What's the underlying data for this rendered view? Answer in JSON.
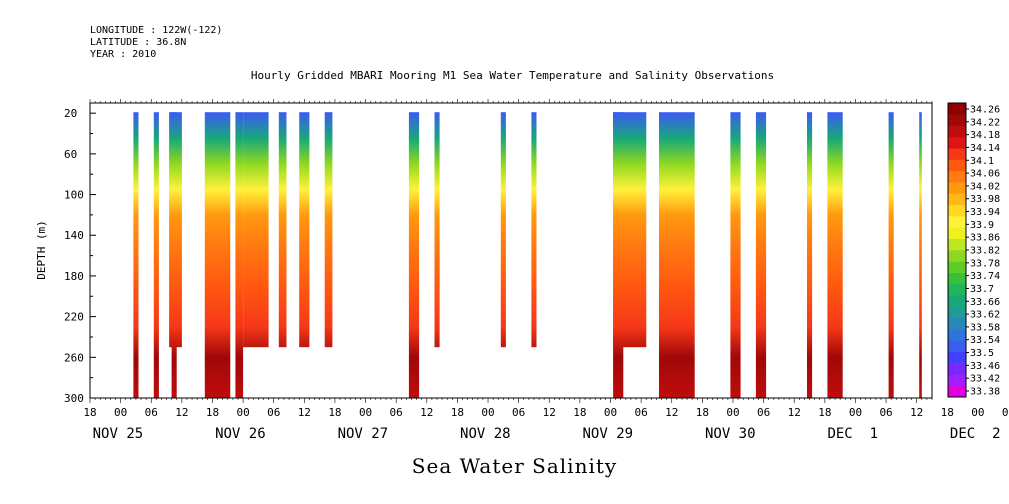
{
  "header": {
    "longitude": "LONGITUDE : 122W(-122)",
    "latitude": "LATITUDE : 36.8N",
    "year": "YEAR : 2010"
  },
  "chart_data": {
    "type": "heatmap",
    "title": "Hourly Gridded MBARI Mooring M1 Sea Water Temperature and Salinity Observations",
    "xlabel": "Sea Water Salinity",
    "ylabel": "DEPTH (m)",
    "y_reversed": true,
    "ylim": [
      300,
      10
    ],
    "y_ticks": [
      20,
      60,
      100,
      140,
      180,
      220,
      260,
      300
    ],
    "x_hour_ticks": [
      "18",
      "00",
      "06",
      "12",
      "18",
      "00",
      "06",
      "12",
      "18",
      "00",
      "06",
      "12",
      "18",
      "00",
      "06",
      "12",
      "18",
      "00",
      "06",
      "12",
      "18",
      "00",
      "06",
      "12",
      "18",
      "00",
      "06",
      "12",
      "18",
      "00",
      "06",
      "12"
    ],
    "x_day_labels": [
      "NOV 25",
      "NOV 26",
      "NOV 27",
      "NOV 28",
      "NOV 29",
      "NOV 30",
      "DEC  1",
      "DEC  2"
    ],
    "colorbar_min": 33.38,
    "colorbar_max": 34.26,
    "colorbar_labels": [
      "34.26",
      "34.22",
      "34.18",
      "34.14",
      "34.1",
      "34.06",
      "34.02",
      "33.98",
      "33.94",
      "33.9",
      "33.86",
      "33.82",
      "33.78",
      "33.74",
      "33.7",
      "33.66",
      "33.62",
      "33.58",
      "33.54",
      "33.5",
      "33.46",
      "33.42",
      "33.38"
    ],
    "colorbar_colors": [
      "#e000e0",
      "#a020ff",
      "#7a28ff",
      "#4040ff",
      "#3a5cf0",
      "#2f74d8",
      "#2888b8",
      "#209a96",
      "#18a878",
      "#20b45c",
      "#38c03c",
      "#60cc28",
      "#90d820",
      "#c0e620",
      "#eef020",
      "#fff23a",
      "#ffd820",
      "#ffb818",
      "#ff9a10",
      "#ff7a10",
      "#ff5810",
      "#f53818",
      "#e01414",
      "#c00c0c",
      "#a00808",
      "#900000"
    ],
    "observation_blocks": [
      {
        "t0": 146.5,
        "t1": 147.5,
        "zmax": 300
      },
      {
        "t0": 150.5,
        "t1": 151.5,
        "zmax": 300
      },
      {
        "t0": 153.5,
        "t1": 156.0,
        "zmax": 250
      },
      {
        "t0": 154.0,
        "t1": 155.0,
        "zmax": 300
      },
      {
        "t0": 160.5,
        "t1": 165.5,
        "zmax": 300
      },
      {
        "t0": 166.5,
        "t1": 168.0,
        "zmax": 300
      },
      {
        "t0": 168.0,
        "t1": 173.0,
        "zmax": 250
      },
      {
        "t0": 175.0,
        "t1": 176.5,
        "zmax": 250
      },
      {
        "t0": 179.0,
        "t1": 181.0,
        "zmax": 250
      },
      {
        "t0": 184.0,
        "t1": 185.5,
        "zmax": 250
      },
      {
        "t0": 200.5,
        "t1": 202.5,
        "zmax": 300
      },
      {
        "t0": 205.5,
        "t1": 206.5,
        "zmax": 250
      },
      {
        "t0": 218.5,
        "t1": 219.5,
        "zmax": 250
      },
      {
        "t0": 224.5,
        "t1": 225.5,
        "zmax": 250
      },
      {
        "t0": 240.5,
        "t1": 247.0,
        "zmax": 250
      },
      {
        "t0": 240.5,
        "t1": 242.5,
        "zmax": 300
      },
      {
        "t0": 249.5,
        "t1": 256.5,
        "zmax": 300
      },
      {
        "t0": 263.5,
        "t1": 265.5,
        "zmax": 300
      },
      {
        "t0": 268.5,
        "t1": 270.5,
        "zmax": 300
      },
      {
        "t0": 278.5,
        "t1": 279.5,
        "zmax": 300
      },
      {
        "t0": 282.5,
        "t1": 285.5,
        "zmax": 300
      },
      {
        "t0": 294.5,
        "t1": 295.5,
        "zmax": 300
      },
      {
        "t0": 300.5,
        "t1": 301.0,
        "zmax": 300
      }
    ],
    "profile": [
      {
        "depth": 20,
        "salinity": 33.52
      },
      {
        "depth": 45,
        "salinity": 33.66
      },
      {
        "depth": 70,
        "salinity": 33.8
      },
      {
        "depth": 95,
        "salinity": 33.92
      },
      {
        "depth": 120,
        "salinity": 34.0
      },
      {
        "depth": 150,
        "salinity": 34.04
      },
      {
        "depth": 190,
        "salinity": 34.06
      },
      {
        "depth": 230,
        "salinity": 34.12
      },
      {
        "depth": 260,
        "salinity": 34.22
      },
      {
        "depth": 300,
        "salinity": 34.16
      }
    ]
  }
}
